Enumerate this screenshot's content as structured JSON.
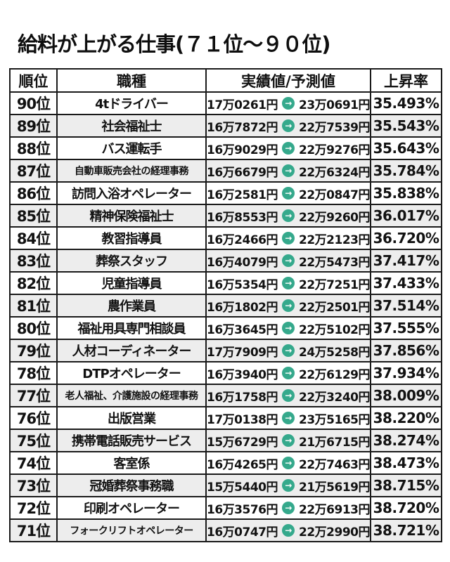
{
  "chart_data": {
    "type": "table",
    "title": "給料が上がる仕事(７１位〜９０位)",
    "columns": [
      "順位",
      "職種",
      "実績値/予測値",
      "上昇率"
    ],
    "rows": [
      {
        "rank": "90位",
        "job": "4tドライバー",
        "actual": "17万0261円",
        "predicted": "23万0691円",
        "rate": "35.493%"
      },
      {
        "rank": "89位",
        "job": "社会福祉士",
        "actual": "16万7872円",
        "predicted": "22万7539円",
        "rate": "35.543%"
      },
      {
        "rank": "88位",
        "job": "バス運転手",
        "actual": "16万9029円",
        "predicted": "22万9276円",
        "rate": "35.643%"
      },
      {
        "rank": "87位",
        "job": "自動車販売会社の経理事務",
        "actual": "16万6679円",
        "predicted": "22万6324円",
        "rate": "35.784%"
      },
      {
        "rank": "86位",
        "job": "訪問入浴オペレーター",
        "actual": "16万2581円",
        "predicted": "22万0847円",
        "rate": "35.838%"
      },
      {
        "rank": "85位",
        "job": "精神保険福祉士",
        "actual": "16万8553円",
        "predicted": "22万9260円",
        "rate": "36.017%"
      },
      {
        "rank": "84位",
        "job": "教習指導員",
        "actual": "16万2466円",
        "predicted": "22万2123円",
        "rate": "36.720%"
      },
      {
        "rank": "83位",
        "job": "葬祭スタッフ",
        "actual": "16万4079円",
        "predicted": "22万5473円",
        "rate": "37.417%"
      },
      {
        "rank": "82位",
        "job": "児童指導員",
        "actual": "16万5354円",
        "predicted": "22万7251円",
        "rate": "37.433%"
      },
      {
        "rank": "81位",
        "job": "農作業員",
        "actual": "16万1802円",
        "predicted": "22万2501円",
        "rate": "37.514%"
      },
      {
        "rank": "80位",
        "job": "福祉用具専門相談員",
        "actual": "16万3645円",
        "predicted": "22万5102円",
        "rate": "37.555%"
      },
      {
        "rank": "79位",
        "job": "人材コーディネーター",
        "actual": "17万7909円",
        "predicted": "24万5258円",
        "rate": "37.856%"
      },
      {
        "rank": "78位",
        "job": "DTPオペレーター",
        "actual": "16万3940円",
        "predicted": "22万6129円",
        "rate": "37.934%"
      },
      {
        "rank": "77位",
        "job": "老人福祉、介護施設の経理事務",
        "actual": "16万1758円",
        "predicted": "22万3240円",
        "rate": "38.009%"
      },
      {
        "rank": "76位",
        "job": "出版営業",
        "actual": "17万0138円",
        "predicted": "23万5165円",
        "rate": "38.220%"
      },
      {
        "rank": "75位",
        "job": "携帯電話販売サービス",
        "actual": "15万6729円",
        "predicted": "21万6715円",
        "rate": "38.274%"
      },
      {
        "rank": "74位",
        "job": "客室係",
        "actual": "16万4265円",
        "predicted": "22万7463円",
        "rate": "38.473%"
      },
      {
        "rank": "73位",
        "job": "冠婚葬祭事務職",
        "actual": "15万5440円",
        "predicted": "21万5619円",
        "rate": "38.715%"
      },
      {
        "rank": "72位",
        "job": "印刷オペレーター",
        "actual": "16万3576円",
        "predicted": "22万6913円",
        "rate": "38.720%"
      },
      {
        "rank": "71位",
        "job": "フォークリフトオペレーター",
        "actual": "16万0747円",
        "predicted": "22万2990円",
        "rate": "38.721%"
      }
    ]
  },
  "icons": {
    "arrow_right": "→"
  },
  "colors": {
    "arrow_circle": "#35a98c",
    "row_alt": "#ededed",
    "border": "#1a1a1a",
    "text": "#121212",
    "background": "#ffffff"
  }
}
